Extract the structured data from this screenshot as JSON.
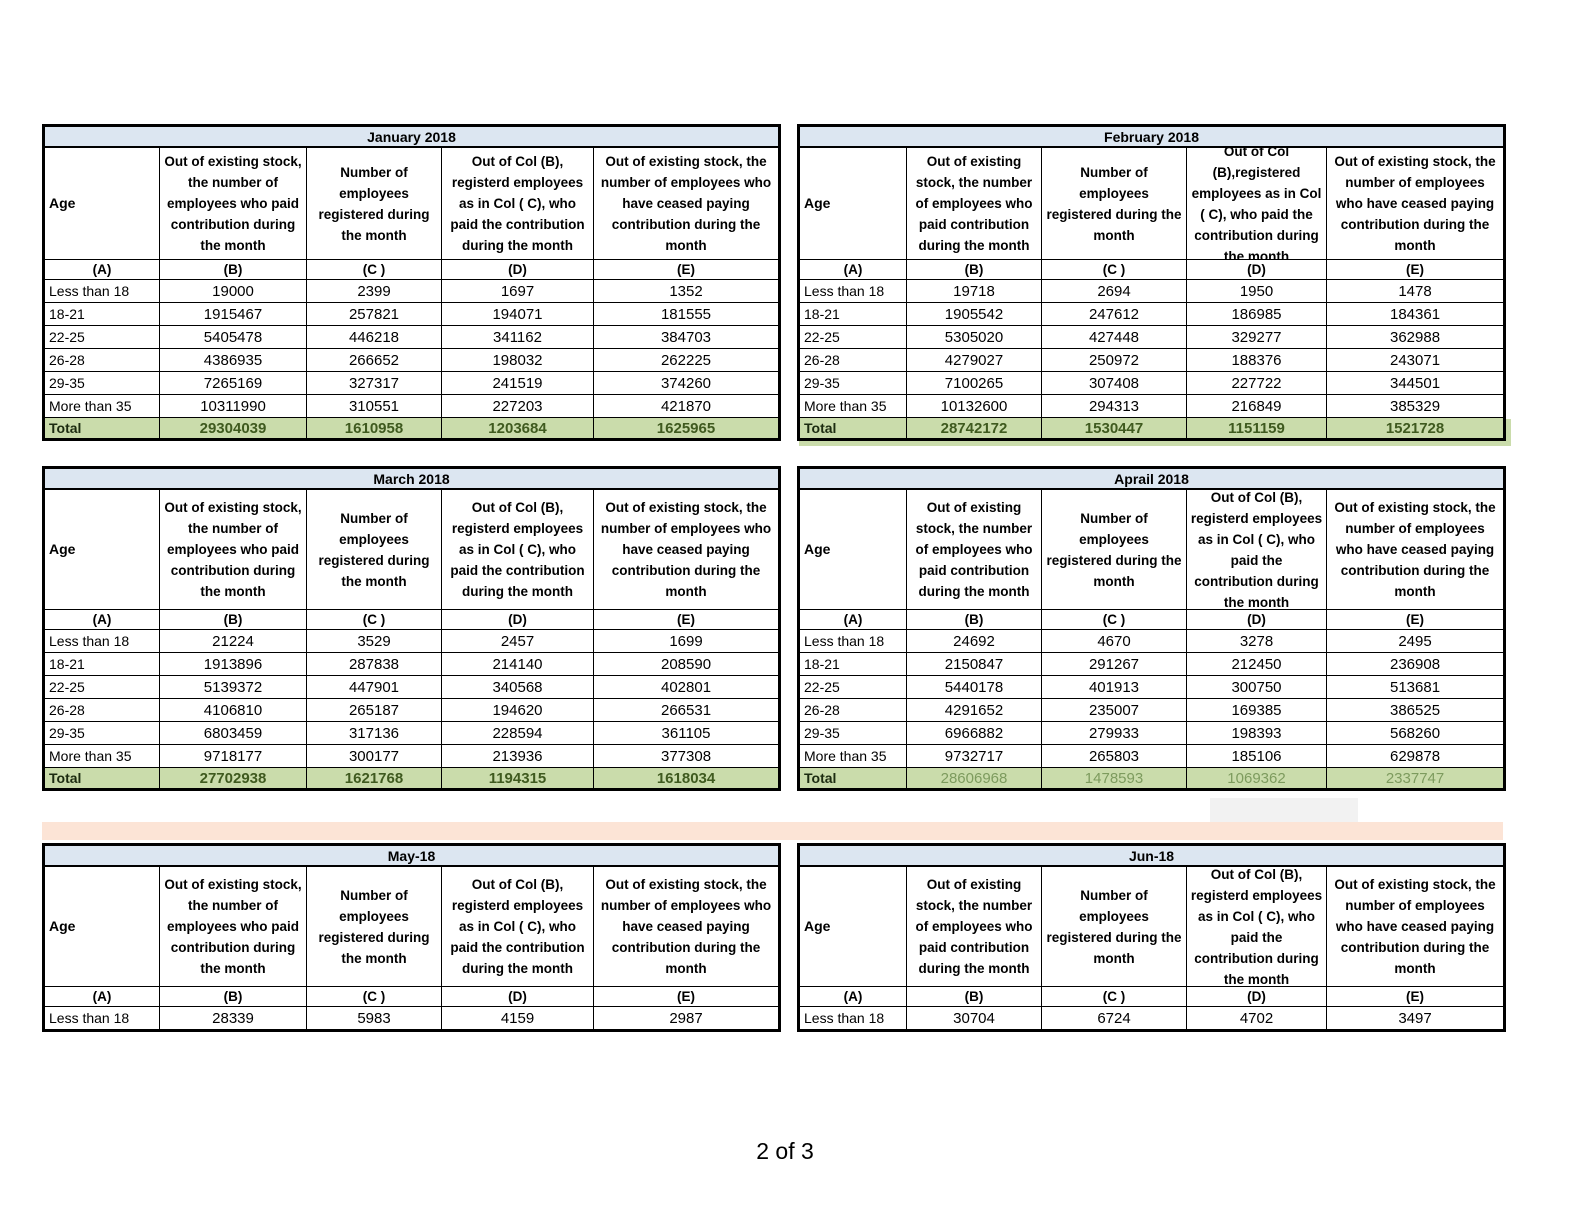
{
  "page": {
    "page_indicator": "2 of 3"
  },
  "colors": {
    "title_bg": "#dce6f1",
    "total_bg": "#cadcab",
    "band_peach": "#fce4d6",
    "artifact_gray": "#f2f2f2",
    "total_text_dark": "#3f5a1f",
    "total_text_light": "#7d9b5e"
  },
  "column_letters": [
    "(A)",
    "(B)",
    "(C )",
    "(D)",
    "(E)"
  ],
  "tables": [
    {
      "id": "january-2018",
      "title": "January 2018",
      "headers": [
        "Age",
        "Out of existing stock, the number of employees who paid contribution during the month",
        "Number of employees registered during the month",
        "Out of Col (B), registerd employees as in Col ( C), who paid the contribution during the month",
        "Out of existing stock, the number of  employees who have ceased paying contribution during the month"
      ],
      "rows": [
        [
          "Less than 18",
          "19000",
          "2399",
          "1697",
          "1352"
        ],
        [
          "18-21",
          "1915467",
          "257821",
          "194071",
          "181555"
        ],
        [
          "22-25",
          "5405478",
          "446218",
          "341162",
          "384703"
        ],
        [
          "26-28",
          "4386935",
          "266652",
          "198032",
          "262225"
        ],
        [
          "29-35",
          "7265169",
          "327317",
          "241519",
          "374260"
        ],
        [
          "More than 35",
          "10311990",
          "310551",
          "227203",
          "421870"
        ]
      ],
      "total": [
        "Total",
        "29304039",
        "1610958",
        "1203684",
        "1625965"
      ],
      "total_variant": "dark"
    },
    {
      "id": "february-2018",
      "title": "February 2018",
      "headers": [
        "Age",
        "Out of existing stock, the number of employees who paid contribution during the month",
        "Number of employees registered during the month",
        "Out of Col (B),registered employees as in Col ( C), who paid the contribution during the month",
        "Out of existing stock, the number of employees  who have ceased paying contribution during the month"
      ],
      "rows": [
        [
          "Less than 18",
          "19718",
          "2694",
          "1950",
          "1478"
        ],
        [
          "18-21",
          "1905542",
          "247612",
          "186985",
          "184361"
        ],
        [
          "22-25",
          "5305020",
          "427448",
          "329277",
          "362988"
        ],
        [
          "26-28",
          "4279027",
          "250972",
          "188376",
          "243071"
        ],
        [
          "29-35",
          "7100265",
          "307408",
          "227722",
          "344501"
        ],
        [
          "More than 35",
          "10132600",
          "294313",
          "216849",
          "385329"
        ]
      ],
      "total": [
        "Total",
        "28742172",
        "1530447",
        "1151159",
        "1521728"
      ],
      "total_variant": "dark"
    },
    {
      "id": "march-2018",
      "title": "March 2018",
      "headers": [
        "Age",
        "Out of existing stock, the number of employees who paid contribution during the month",
        "Number of employees registered during the month",
        "Out of Col (B), registerd employees as in Col ( C), who paid the contribution during the month",
        "Out of existing stock, the number of  employees who have ceased paying contribution during the month"
      ],
      "rows": [
        [
          "Less than 18",
          "21224",
          "3529",
          "2457",
          "1699"
        ],
        [
          "18-21",
          "1913896",
          "287838",
          "214140",
          "208590"
        ],
        [
          "22-25",
          "5139372",
          "447901",
          "340568",
          "402801"
        ],
        [
          "26-28",
          "4106810",
          "265187",
          "194620",
          "266531"
        ],
        [
          "29-35",
          "6803459",
          "317136",
          "228594",
          "361105"
        ],
        [
          "More than 35",
          "9718177",
          "300177",
          "213936",
          "377308"
        ]
      ],
      "total": [
        "Total",
        "27702938",
        "1621768",
        "1194315",
        "1618034"
      ],
      "total_variant": "dark"
    },
    {
      "id": "april-2018",
      "title": "Aprail 2018",
      "headers": [
        "Age",
        "Out of existing stock, the number of employees who paid contribution during the month",
        "Number of employees registered during the month",
        "Out of Col (B), registerd employees as in Col ( C), who paid the contribution during the month",
        "Out of existing stock, the number of employees  who have ceased paying contribution during the month"
      ],
      "rows": [
        [
          "Less than 18",
          "24692",
          "4670",
          "3278",
          "2495"
        ],
        [
          "18-21",
          "2150847",
          "291267",
          "212450",
          "236908"
        ],
        [
          "22-25",
          "5440178",
          "401913",
          "300750",
          "513681"
        ],
        [
          "26-28",
          "4291652",
          "235007",
          "169385",
          "386525"
        ],
        [
          "29-35",
          "6966882",
          "279933",
          "198393",
          "568260"
        ],
        [
          "More than 35",
          "9732717",
          "265803",
          "185106",
          "629878"
        ]
      ],
      "total": [
        "Total",
        "28606968",
        "1478593",
        "1069362",
        "2337747"
      ],
      "total_variant": "light"
    },
    {
      "id": "may-18",
      "title": "May-18",
      "headers": [
        "Age",
        "Out of existing stock, the number of employees who paid contribution during the month",
        "Number of employees registered during the month",
        "Out of Col (B), registerd employees as in Col ( C), who paid the contribution during the month",
        "Out of existing stock, the number of  employees who have ceased paying contribution during the month"
      ],
      "rows": [
        [
          "Less than 18",
          "28339",
          "5983",
          "4159",
          "2987"
        ]
      ],
      "total": null,
      "total_variant": null
    },
    {
      "id": "jun-18",
      "title": "Jun-18",
      "headers": [
        "Age",
        "Out of existing stock, the number of employees who paid contribution during the month",
        "Number of employees registered during the month",
        "Out of Col (B), registerd employees as in Col ( C), who paid the contribution during the month",
        "Out of existing stock, the number of employees  who have ceased paying contribution during the month"
      ],
      "rows": [
        [
          "Less than 18",
          "30704",
          "6724",
          "4702",
          "3497"
        ]
      ],
      "total": null,
      "total_variant": null
    }
  ]
}
